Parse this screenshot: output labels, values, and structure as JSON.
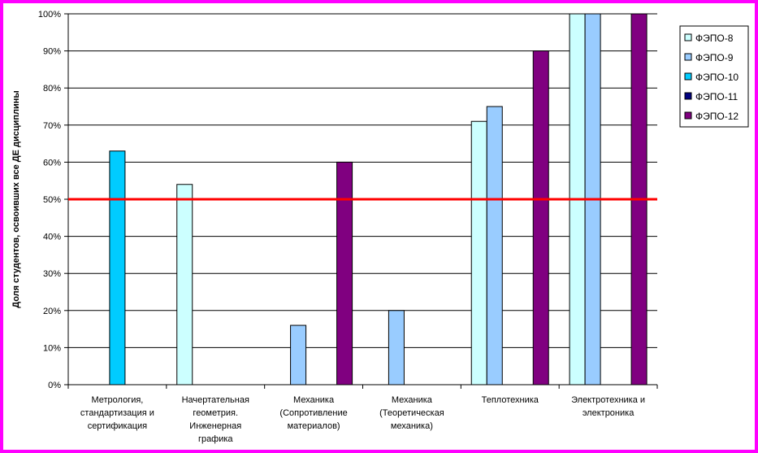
{
  "chart_data": {
    "type": "bar",
    "ylabel": "Доля студентов, освоивших все ДЕ дисциплины",
    "ylim": [
      0,
      100
    ],
    "yticks": [
      "0%",
      "10%",
      "20%",
      "30%",
      "40%",
      "50%",
      "60%",
      "70%",
      "80%",
      "90%",
      "100%"
    ],
    "grid": true,
    "legend_position": "right",
    "categories": [
      [
        "Метрология,",
        "стандартизация и",
        "сертификация"
      ],
      [
        "Начертательная",
        "геометрия.",
        "Инженерная",
        "графика"
      ],
      [
        "Механика",
        "(Сопротивление",
        "материалов)"
      ],
      [
        "Механика",
        "(Теоретическая",
        "механика)"
      ],
      [
        "Теплотехника"
      ],
      [
        "Электротехника и",
        "электроника"
      ]
    ],
    "series": [
      {
        "name": "ФЭПО-8",
        "color": "#ccffff",
        "values": [
          null,
          54,
          null,
          null,
          71,
          100
        ]
      },
      {
        "name": "ФЭПО-9",
        "color": "#99ccff",
        "values": [
          null,
          null,
          16,
          20,
          75,
          100
        ]
      },
      {
        "name": "ФЭПО-10",
        "color": "#00ccff",
        "values": [
          63,
          null,
          null,
          null,
          null,
          null
        ]
      },
      {
        "name": "ФЭПО-11",
        "color": "#000080",
        "values": [
          null,
          null,
          null,
          null,
          null,
          null
        ]
      },
      {
        "name": "ФЭПО-12",
        "color": "#800080",
        "values": [
          null,
          null,
          60,
          null,
          90,
          100
        ]
      }
    ],
    "threshold": {
      "value": 50,
      "color": "#ff0000"
    }
  }
}
